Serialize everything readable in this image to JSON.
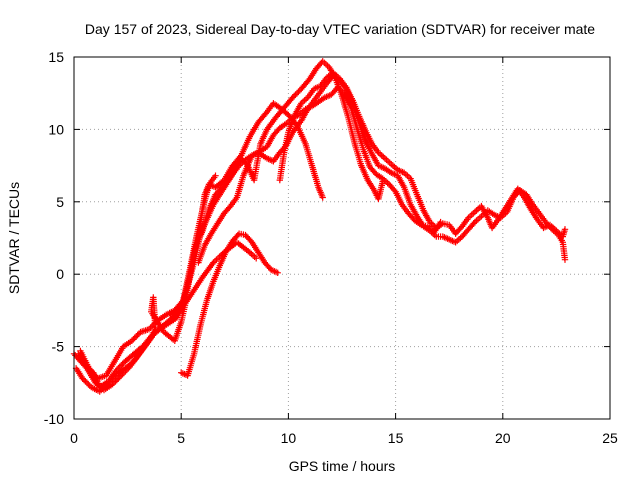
{
  "chart_data": {
    "type": "scatter",
    "title": "Day 157 of 2023, Sidereal Day-to-day VTEC variation (SDTVAR) for receiver mate",
    "xlabel": "GPS time / hours",
    "ylabel": "SDTVAR / TECUs",
    "xlim": [
      0,
      25
    ],
    "ylim": [
      -10,
      15
    ],
    "xticks": [
      "0",
      "5",
      "10",
      "15",
      "20",
      "25"
    ],
    "yticks": [
      "-10",
      "-5",
      "0",
      "5",
      "10",
      "15"
    ],
    "grid": true,
    "marker": "+",
    "color": "#ff0000",
    "series": [
      {
        "name": "track-1",
        "points": [
          [
            0,
            -5.5
          ],
          [
            0.3,
            -6.0
          ],
          [
            0.6,
            -6.5
          ],
          [
            1.0,
            -7.5
          ],
          [
            1.4,
            -8.0
          ],
          [
            1.8,
            -7.6
          ],
          [
            2.2,
            -7.0
          ],
          [
            2.6,
            -6.4
          ],
          [
            3.0,
            -5.6
          ],
          [
            3.4,
            -4.8
          ],
          [
            3.8,
            -4.0
          ],
          [
            4.2,
            -3.5
          ],
          [
            4.6,
            -3.0
          ],
          [
            5.0,
            -2.5
          ],
          [
            5.3,
            -1.0
          ],
          [
            5.6,
            1.5
          ],
          [
            5.9,
            3.5
          ],
          [
            6.1,
            5.5
          ],
          [
            6.3,
            6.2
          ],
          [
            6.6,
            6.0
          ],
          [
            7.0,
            6.5
          ],
          [
            7.4,
            7.5
          ],
          [
            7.8,
            8.2
          ],
          [
            8.2,
            9.5
          ],
          [
            8.6,
            10.5
          ],
          [
            9.0,
            11.2
          ],
          [
            9.3,
            11.8
          ],
          [
            9.6,
            11.5
          ],
          [
            10.0,
            11.0
          ],
          [
            10.4,
            10.3
          ],
          [
            10.8,
            9.0
          ],
          [
            11.1,
            7.5
          ],
          [
            11.4,
            6.0
          ],
          [
            11.6,
            5.3
          ]
        ]
      },
      {
        "name": "track-2",
        "points": [
          [
            0.2,
            -5.5
          ],
          [
            0.5,
            -6.2
          ],
          [
            0.9,
            -6.8
          ],
          [
            1.2,
            -7.8
          ],
          [
            1.6,
            -7.4
          ],
          [
            2.0,
            -6.6
          ],
          [
            2.4,
            -6.0
          ],
          [
            2.8,
            -5.5
          ],
          [
            3.2,
            -5.0
          ],
          [
            3.6,
            -4.3
          ],
          [
            4.0,
            -3.8
          ],
          [
            4.4,
            -3.4
          ],
          [
            4.8,
            -3.0
          ],
          [
            5.1,
            -2.0
          ],
          [
            5.4,
            0.0
          ],
          [
            5.7,
            2.0
          ],
          [
            6.0,
            3.0
          ],
          [
            6.3,
            4.5
          ],
          [
            6.6,
            5.5
          ],
          [
            6.9,
            6.0
          ],
          [
            7.2,
            6.5
          ],
          [
            7.5,
            7.2
          ],
          [
            7.8,
            8.0
          ],
          [
            8.1,
            7.5
          ],
          [
            8.4,
            6.5
          ],
          [
            8.7,
            9.0
          ],
          [
            9.0,
            10.0
          ],
          [
            9.4,
            10.8
          ],
          [
            9.8,
            11.5
          ],
          [
            10.2,
            12.2
          ],
          [
            10.6,
            12.8
          ],
          [
            11.0,
            13.5
          ],
          [
            11.3,
            14.2
          ],
          [
            11.6,
            14.7
          ],
          [
            11.9,
            14.3
          ],
          [
            12.2,
            13.5
          ],
          [
            12.5,
            12.3
          ],
          [
            12.8,
            10.8
          ],
          [
            13.1,
            9.0
          ],
          [
            13.4,
            7.5
          ],
          [
            13.7,
            6.5
          ],
          [
            14.0,
            5.8
          ],
          [
            14.2,
            5.2
          ],
          [
            14.4,
            6.4
          ]
        ]
      },
      {
        "name": "track-3",
        "points": [
          [
            4.5,
            -2.8
          ],
          [
            5.0,
            -2.2
          ],
          [
            5.3,
            -0.8
          ],
          [
            5.6,
            0.8
          ],
          [
            5.9,
            2.8
          ],
          [
            6.2,
            3.8
          ],
          [
            6.5,
            4.8
          ],
          [
            6.8,
            5.5
          ],
          [
            7.1,
            6.2
          ],
          [
            7.4,
            6.9
          ],
          [
            7.7,
            7.5
          ],
          [
            8.0,
            7.9
          ],
          [
            8.3,
            8.2
          ],
          [
            8.6,
            8.4
          ],
          [
            9.0,
            8.0
          ],
          [
            9.3,
            7.8
          ],
          [
            9.6,
            8.4
          ],
          [
            9.9,
            8.9
          ],
          [
            10.2,
            9.8
          ],
          [
            10.6,
            10.6
          ],
          [
            10.9,
            11.4
          ],
          [
            11.2,
            12.0
          ],
          [
            11.5,
            12.6
          ],
          [
            11.8,
            13.2
          ],
          [
            12.1,
            13.7
          ],
          [
            12.4,
            13.4
          ],
          [
            12.7,
            12.8
          ],
          [
            13.0,
            11.8
          ],
          [
            13.3,
            10.5
          ],
          [
            13.6,
            9.2
          ],
          [
            13.9,
            8.3
          ],
          [
            14.2,
            7.5
          ],
          [
            14.5,
            7.3
          ],
          [
            14.8,
            7.0
          ],
          [
            15.1,
            6.8
          ],
          [
            15.4,
            6.0
          ],
          [
            15.7,
            4.8
          ],
          [
            16.0,
            4.0
          ],
          [
            16.3,
            3.3
          ],
          [
            16.6,
            3.0
          ],
          [
            16.9,
            2.6
          ],
          [
            17.2,
            2.6
          ],
          [
            17.5,
            2.4
          ],
          [
            17.8,
            2.2
          ],
          [
            18.1,
            2.6
          ],
          [
            18.4,
            3.1
          ],
          [
            18.7,
            3.6
          ],
          [
            19.0,
            4.0
          ],
          [
            19.3,
            4.4
          ],
          [
            19.6,
            4.1
          ],
          [
            19.9,
            3.9
          ],
          [
            20.2,
            4.3
          ],
          [
            20.5,
            5.3
          ],
          [
            20.8,
            5.8
          ],
          [
            21.1,
            5.5
          ],
          [
            21.4,
            4.8
          ],
          [
            21.7,
            4.2
          ],
          [
            22.0,
            3.6
          ],
          [
            22.3,
            3.1
          ],
          [
            22.6,
            2.7
          ],
          [
            22.8,
            2.2
          ],
          [
            22.9,
            1.0
          ]
        ]
      },
      {
        "name": "track-4",
        "points": [
          [
            5.0,
            -6.8
          ],
          [
            5.3,
            -7.0
          ],
          [
            5.6,
            -5.5
          ],
          [
            5.9,
            -3.5
          ],
          [
            6.2,
            -1.8
          ],
          [
            6.5,
            -0.5
          ],
          [
            6.8,
            0.6
          ],
          [
            7.1,
            1.6
          ],
          [
            7.4,
            2.3
          ],
          [
            7.7,
            2.8
          ],
          [
            8.0,
            2.7
          ],
          [
            8.3,
            2.2
          ],
          [
            8.6,
            1.5
          ],
          [
            8.9,
            0.8
          ],
          [
            9.2,
            0.3
          ],
          [
            9.5,
            0.1
          ]
        ]
      },
      {
        "name": "track-5",
        "points": [
          [
            9.6,
            6.5
          ],
          [
            9.8,
            8.4
          ],
          [
            10.0,
            9.8
          ],
          [
            10.3,
            11.0
          ],
          [
            10.6,
            11.8
          ],
          [
            10.9,
            12.2
          ],
          [
            11.2,
            12.8
          ],
          [
            11.5,
            13.0
          ],
          [
            11.8,
            13.6
          ],
          [
            12.1,
            13.9
          ],
          [
            12.4,
            13.5
          ],
          [
            12.7,
            12.9
          ],
          [
            13.0,
            12.0
          ],
          [
            13.3,
            10.9
          ],
          [
            13.6,
            9.9
          ],
          [
            13.9,
            9.0
          ],
          [
            14.2,
            8.4
          ],
          [
            14.5,
            8.0
          ],
          [
            14.8,
            7.6
          ],
          [
            15.1,
            7.2
          ],
          [
            15.4,
            7.0
          ],
          [
            15.7,
            6.6
          ],
          [
            16.0,
            5.5
          ],
          [
            16.3,
            4.4
          ],
          [
            16.6,
            3.6
          ],
          [
            16.9,
            3.2
          ],
          [
            17.2,
            3.5
          ],
          [
            17.5,
            3.4
          ],
          [
            17.8,
            2.8
          ],
          [
            18.1,
            3.3
          ],
          [
            18.4,
            3.9
          ],
          [
            18.7,
            4.3
          ],
          [
            19.0,
            4.7
          ],
          [
            19.3,
            3.9
          ],
          [
            19.5,
            3.2
          ],
          [
            19.8,
            3.8
          ],
          [
            20.1,
            4.5
          ],
          [
            20.4,
            5.2
          ],
          [
            20.7,
            5.9
          ],
          [
            21.0,
            5.3
          ],
          [
            21.3,
            4.5
          ],
          [
            21.6,
            3.8
          ],
          [
            21.9,
            3.2
          ],
          [
            22.2,
            3.4
          ],
          [
            22.5,
            3.0
          ],
          [
            22.8,
            2.6
          ],
          [
            22.9,
            3.1
          ]
        ]
      },
      {
        "name": "track-6",
        "points": [
          [
            0.1,
            -6.5
          ],
          [
            0.4,
            -7.2
          ],
          [
            0.8,
            -7.8
          ],
          [
            1.2,
            -8.1
          ],
          [
            1.6,
            -7.5
          ],
          [
            2.0,
            -6.9
          ],
          [
            2.4,
            -6.5
          ],
          [
            2.8,
            -6.0
          ],
          [
            3.2,
            -5.2
          ],
          [
            3.5,
            -4.6
          ],
          [
            3.8,
            -3.8
          ],
          [
            3.7,
            -1.6
          ],
          [
            3.6,
            -2.6
          ],
          [
            4.2,
            -4.0
          ],
          [
            4.7,
            -4.6
          ],
          [
            5.0,
            -3.3
          ],
          [
            5.2,
            -2.0
          ],
          [
            6.0,
            -0.2
          ],
          [
            6.5,
            0.8
          ],
          [
            7.0,
            1.5
          ],
          [
            7.6,
            2.2
          ],
          [
            8.2,
            1.5
          ],
          [
            8.5,
            1.1
          ]
        ]
      },
      {
        "name": "track-7",
        "points": [
          [
            5.8,
            0.8
          ],
          [
            6.1,
            2.0
          ],
          [
            6.4,
            2.8
          ],
          [
            6.7,
            3.5
          ],
          [
            7.0,
            4.2
          ],
          [
            7.3,
            4.7
          ],
          [
            7.6,
            5.3
          ],
          [
            7.9,
            6.8
          ],
          [
            8.3,
            8.2
          ],
          [
            8.7,
            8.5
          ],
          [
            9.0,
            8.8
          ],
          [
            9.3,
            9.6
          ],
          [
            9.6,
            10.1
          ],
          [
            9.9,
            10.4
          ],
          [
            10.2,
            10.8
          ],
          [
            10.5,
            11.0
          ],
          [
            10.8,
            11.4
          ],
          [
            11.1,
            11.6
          ],
          [
            11.4,
            11.9
          ],
          [
            11.7,
            12.2
          ],
          [
            12.0,
            12.4
          ],
          [
            12.3,
            12.9
          ],
          [
            12.6,
            12.5
          ],
          [
            12.9,
            11.6
          ],
          [
            13.2,
            10.1
          ],
          [
            13.5,
            8.6
          ],
          [
            13.8,
            7.4
          ],
          [
            14.1,
            6.9
          ],
          [
            14.4,
            6.6
          ],
          [
            14.7,
            6.2
          ],
          [
            15.0,
            5.7
          ],
          [
            15.3,
            4.8
          ],
          [
            15.6,
            4.2
          ],
          [
            15.9,
            3.7
          ],
          [
            16.2,
            3.4
          ],
          [
            16.5,
            3.3
          ],
          [
            16.8,
            2.9
          ],
          [
            17.1,
            3.6
          ]
        ]
      },
      {
        "name": "track-8",
        "points": [
          [
            0.3,
            -5.3
          ],
          [
            0.7,
            -6.5
          ],
          [
            1.1,
            -7.2
          ],
          [
            1.5,
            -7.0
          ],
          [
            1.9,
            -6.0
          ],
          [
            2.3,
            -5.0
          ],
          [
            2.7,
            -4.6
          ],
          [
            3.1,
            -4.0
          ],
          [
            3.5,
            -3.8
          ],
          [
            3.9,
            -3.2
          ],
          [
            4.3,
            -2.8
          ],
          [
            4.7,
            -2.5
          ],
          [
            5.1,
            -1.8
          ],
          [
            5.4,
            0.3
          ],
          [
            5.7,
            2.5
          ],
          [
            6.0,
            4.5
          ],
          [
            6.3,
            6.2
          ],
          [
            6.6,
            6.8
          ]
        ]
      }
    ]
  }
}
